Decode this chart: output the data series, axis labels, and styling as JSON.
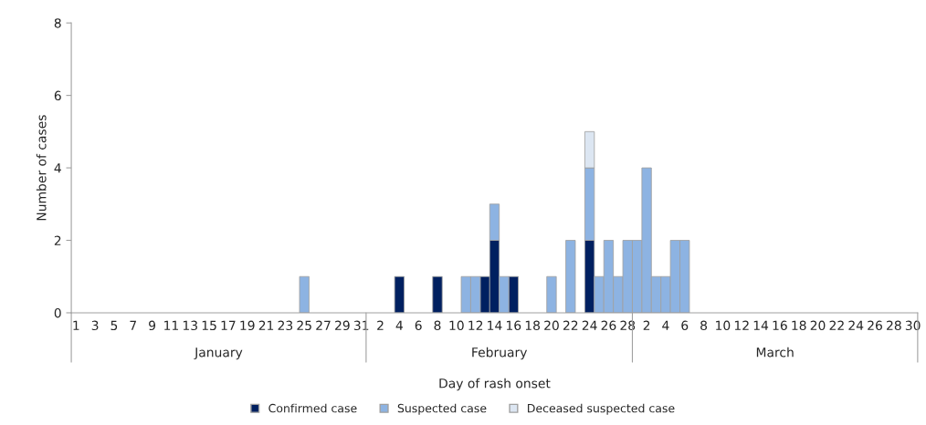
{
  "chart_data": {
    "type": "bar",
    "stacked": true,
    "xlabel": "Day of rash onset",
    "ylabel": "Number of cases",
    "categories": [
      "1",
      null,
      "3",
      null,
      "5",
      null,
      "7",
      null,
      "9",
      null,
      "11",
      null,
      "13",
      null,
      "15",
      null,
      "17",
      null,
      "19",
      null,
      "21",
      null,
      "23",
      null,
      "25",
      null,
      "27",
      null,
      "29",
      null,
      "31",
      null,
      "2",
      null,
      "4",
      null,
      "6",
      null,
      "8",
      null,
      "10",
      null,
      "12",
      null,
      "14",
      null,
      "16",
      null,
      "18",
      null,
      "20",
      null,
      "22",
      null,
      "24",
      null,
      "26",
      null,
      "28",
      null,
      "2",
      null,
      "4",
      null,
      "6",
      null,
      "8",
      null,
      "10",
      null,
      "12",
      null,
      "14",
      null,
      "16",
      null,
      "18",
      null,
      "20",
      null,
      "22",
      null,
      "24",
      null,
      "26",
      null,
      "28",
      null,
      "30"
    ],
    "series": [
      {
        "name": "Confirmed case",
        "color": "#002060",
        "values": [
          0,
          0,
          0,
          0,
          0,
          0,
          0,
          0,
          0,
          0,
          0,
          0,
          0,
          0,
          0,
          0,
          0,
          0,
          0,
          0,
          0,
          0,
          0,
          0,
          0,
          0,
          0,
          0,
          0,
          0,
          0,
          0,
          0,
          0,
          1,
          0,
          0,
          0,
          1,
          0,
          0,
          0,
          0,
          1,
          2,
          0,
          1,
          0,
          0,
          0,
          0,
          0,
          0,
          0,
          2,
          0,
          0,
          0,
          0,
          0,
          0,
          0,
          0,
          0,
          0,
          0,
          0,
          0,
          0,
          0,
          0,
          0,
          0,
          0,
          0,
          0,
          0,
          0,
          0,
          0,
          0,
          0,
          0,
          0,
          0,
          0,
          0,
          0,
          0
        ]
      },
      {
        "name": "Suspected case",
        "color": "#8db3e2",
        "values": [
          0,
          0,
          0,
          0,
          0,
          0,
          0,
          0,
          0,
          0,
          0,
          0,
          0,
          0,
          0,
          0,
          0,
          0,
          0,
          0,
          0,
          0,
          0,
          0,
          1,
          0,
          0,
          0,
          0,
          0,
          0,
          0,
          0,
          0,
          0,
          0,
          0,
          0,
          0,
          0,
          0,
          1,
          1,
          0,
          1,
          1,
          0,
          0,
          0,
          0,
          1,
          0,
          2,
          0,
          2,
          1,
          2,
          1,
          2,
          2,
          4,
          1,
          1,
          2,
          2,
          0,
          0,
          0,
          0,
          0,
          0,
          0,
          0,
          0,
          0,
          0,
          0,
          0,
          0,
          0,
          0,
          0,
          0,
          0,
          0,
          0,
          0,
          0,
          0
        ]
      },
      {
        "name": "Deceased suspected case",
        "color": "#dce6f2",
        "values": [
          0,
          0,
          0,
          0,
          0,
          0,
          0,
          0,
          0,
          0,
          0,
          0,
          0,
          0,
          0,
          0,
          0,
          0,
          0,
          0,
          0,
          0,
          0,
          0,
          0,
          0,
          0,
          0,
          0,
          0,
          0,
          0,
          0,
          0,
          0,
          0,
          0,
          0,
          0,
          0,
          0,
          0,
          0,
          0,
          0,
          0,
          0,
          0,
          0,
          0,
          0,
          0,
          0,
          0,
          1,
          0,
          0,
          0,
          0,
          0,
          0,
          0,
          0,
          0,
          0,
          0,
          0,
          0,
          0,
          0,
          0,
          0,
          0,
          0,
          0,
          0,
          0,
          0,
          0,
          0,
          0,
          0,
          0,
          0,
          0,
          0,
          0,
          0,
          0
        ]
      }
    ],
    "ylim": [
      0,
      8
    ],
    "yticks": [
      0,
      2,
      4,
      6,
      8
    ],
    "grid": false,
    "legend": "bottom",
    "annotations": [
      "January",
      "February",
      "March"
    ]
  }
}
